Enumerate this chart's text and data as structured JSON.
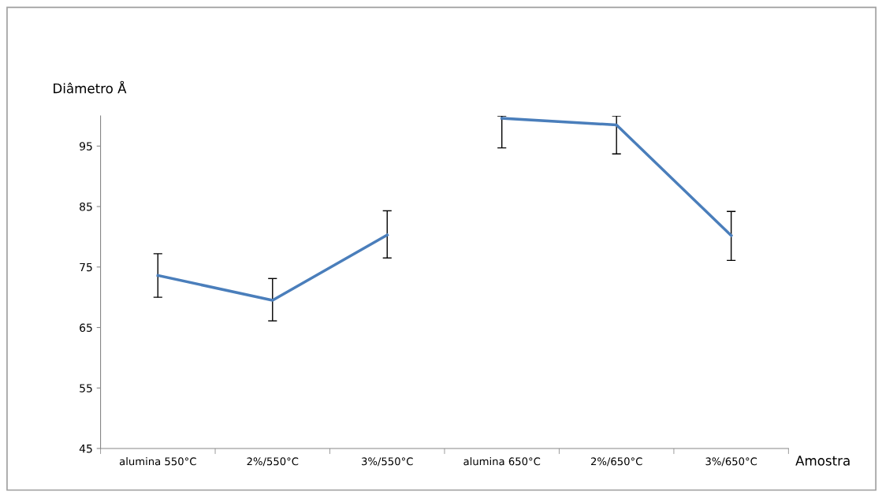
{
  "chart_data": {
    "type": "line",
    "ylabel": "Diâmetro Å",
    "xlabel": "Amostra",
    "categories": [
      "alumina 550°C",
      "2%/550°C",
      "3%/550°C",
      "alumina 650°C",
      "2%/650°C",
      "3%/650°C"
    ],
    "series": [
      {
        "color": "#4a7ebb",
        "values": [
          73.6,
          69.5,
          80.3,
          null,
          null,
          null
        ],
        "errors": [
          [
            70.0,
            77.2
          ],
          [
            66.1,
            73.1
          ],
          [
            76.5,
            84.3
          ],
          null,
          null,
          null
        ]
      },
      {
        "color": "#4a7ebb",
        "values": [
          null,
          null,
          null,
          99.6,
          98.5,
          80.2
        ],
        "errors": [
          null,
          null,
          null,
          [
            94.7,
            100
          ],
          [
            93.7,
            100
          ],
          [
            76.1,
            84.2
          ]
        ]
      }
    ],
    "ylim": [
      45,
      100
    ],
    "yticks": [
      45,
      55,
      65,
      75,
      85,
      95
    ],
    "grid": false,
    "legend": false,
    "marker": "none"
  }
}
